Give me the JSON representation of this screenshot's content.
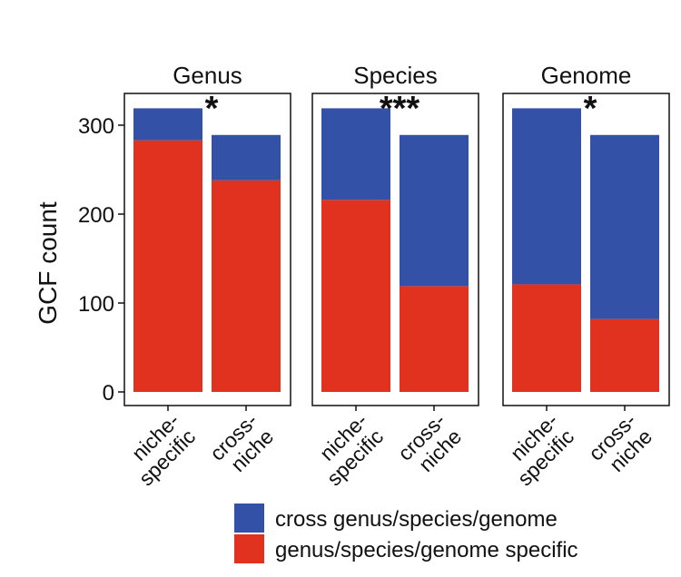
{
  "chart_data": {
    "type": "bar",
    "stacked": true,
    "ylabel": "GCF count",
    "ylim": [
      0,
      320
    ],
    "yticks": [
      0,
      100,
      200,
      300
    ],
    "categories": [
      "niche-\nspecific",
      "cross-\nniche"
    ],
    "colors": {
      "cross genus/species/genome": "#3451a8",
      "genus/species/genome specific": "#e0321f"
    },
    "legend": {
      "position": "bottom",
      "entries": [
        "cross genus/species/genome",
        "genus/species/genome specific"
      ]
    },
    "panels": [
      {
        "title": "Genus",
        "significance": "*",
        "bars": [
          {
            "category": "niche-specific",
            "specific": 283,
            "cross": 36
          },
          {
            "category": "cross-niche",
            "specific": 238,
            "cross": 51
          }
        ]
      },
      {
        "title": "Species",
        "significance": "***",
        "bars": [
          {
            "category": "niche-specific",
            "specific": 216,
            "cross": 103
          },
          {
            "category": "cross-niche",
            "specific": 119,
            "cross": 170
          }
        ]
      },
      {
        "title": "Genome",
        "significance": "*",
        "bars": [
          {
            "category": "niche-specific",
            "specific": 121,
            "cross": 198
          },
          {
            "category": "cross-niche",
            "specific": 82,
            "cross": 207
          }
        ]
      }
    ]
  }
}
